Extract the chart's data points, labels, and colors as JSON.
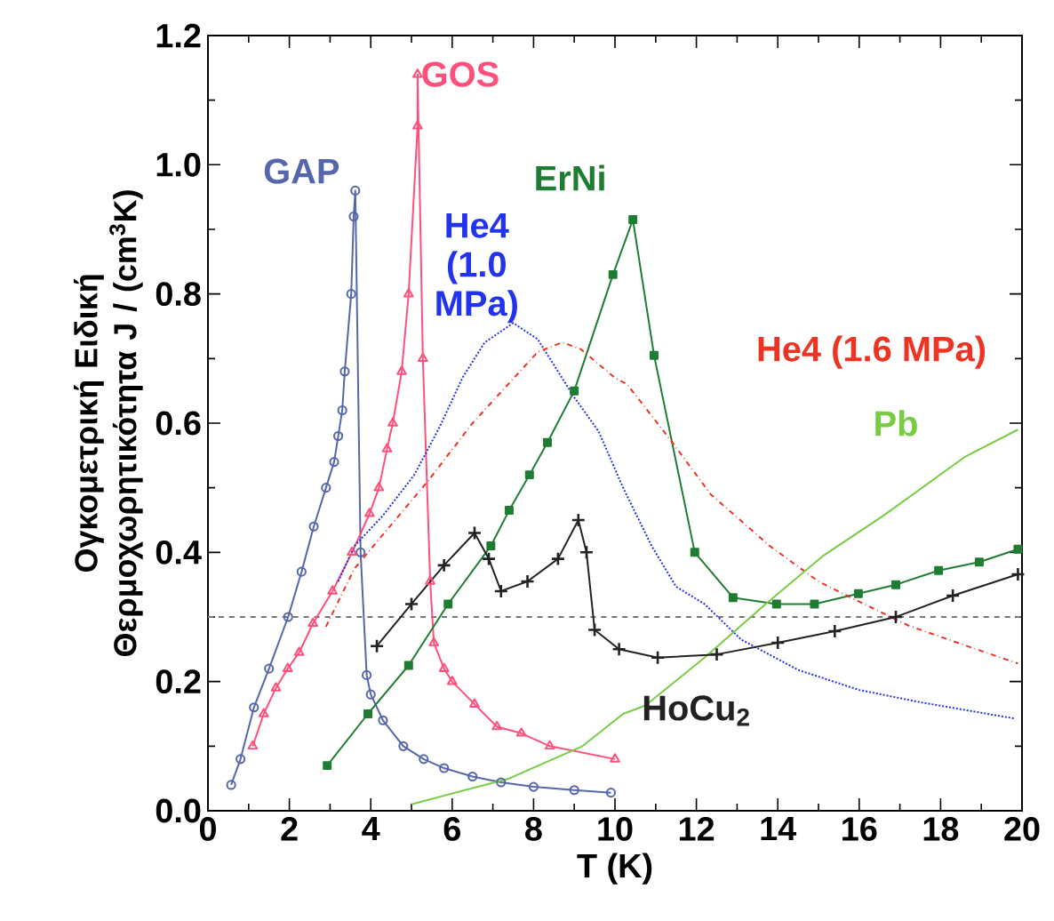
{
  "chart_data": {
    "type": "line",
    "xlabel": "T (K)",
    "ylabel": "Ογκομετρική Ειδική Θερμοχωρητικότητα J / (cm$^{3}$K)",
    "xlim": [
      0,
      20
    ],
    "ylim": [
      0,
      1.2
    ],
    "xticks": [
      0,
      2,
      4,
      6,
      8,
      10,
      12,
      14,
      16,
      18,
      20
    ],
    "yticks": [
      {
        "value": 0,
        "label": "0.0"
      },
      {
        "value": 0.2,
        "label": "0.2"
      },
      {
        "value": 0.4,
        "label": "0.4"
      },
      {
        "value": 0.6,
        "label": "0.6"
      },
      {
        "value": 0.8,
        "label": "0.8"
      },
      {
        "value": 1.0,
        "label": "1.0"
      },
      {
        "value": 1.2,
        "label": "1.2"
      }
    ],
    "grid": false,
    "ref_lines": [
      {
        "axis": "y",
        "value": 0.3,
        "color": "#777777",
        "line_style": "dashed"
      }
    ],
    "series": [
      {
        "name": "GAP",
        "color": "#5566aa",
        "marker": "circle",
        "line_style": "solid",
        "x": [
          0.57,
          0.8,
          1.13,
          1.5,
          1.97,
          2.3,
          2.6,
          2.9,
          3.1,
          3.2,
          3.3,
          3.36,
          3.52,
          3.58,
          3.62,
          3.75,
          3.9,
          4.0,
          4.3,
          4.8,
          5.3,
          5.8,
          6.5,
          7.2,
          8.0,
          9.0,
          9.9
        ],
        "values": [
          0.04,
          0.08,
          0.16,
          0.22,
          0.3,
          0.37,
          0.44,
          0.5,
          0.54,
          0.58,
          0.62,
          0.68,
          0.8,
          0.92,
          0.96,
          0.4,
          0.21,
          0.18,
          0.14,
          0.1,
          0.08,
          0.066,
          0.053,
          0.044,
          0.037,
          0.032,
          0.028
        ]
      },
      {
        "name": "GOS",
        "color": "#ff4f7b",
        "marker": "triangle",
        "line_style": "solid",
        "x": [
          1.1,
          1.37,
          1.67,
          1.96,
          2.24,
          2.58,
          3.06,
          3.54,
          3.97,
          4.2,
          4.4,
          4.54,
          4.76,
          4.93,
          5.15,
          5.15,
          5.28,
          5.46,
          5.55,
          5.8,
          6.0,
          6.55,
          7.1,
          7.7,
          8.4,
          10.0
        ],
        "values": [
          0.1,
          0.15,
          0.19,
          0.22,
          0.245,
          0.29,
          0.34,
          0.4,
          0.46,
          0.5,
          0.56,
          0.6,
          0.68,
          0.8,
          1.06,
          1.14,
          0.7,
          0.355,
          0.26,
          0.22,
          0.2,
          0.165,
          0.13,
          0.12,
          0.1,
          0.08
        ]
      },
      {
        "name": "ErNi",
        "color": "#1e7d32",
        "marker": "square",
        "line_style": "solid",
        "x": [
          2.93,
          3.93,
          4.93,
          5.9,
          6.95,
          7.4,
          7.9,
          8.34,
          9.0,
          9.95,
          10.44,
          10.96,
          11.96,
          12.9,
          13.97,
          14.9,
          15.98,
          16.9,
          17.95,
          18.95,
          19.9
        ],
        "values": [
          0.07,
          0.15,
          0.225,
          0.32,
          0.41,
          0.465,
          0.52,
          0.57,
          0.65,
          0.83,
          0.915,
          0.705,
          0.4,
          0.33,
          0.32,
          0.32,
          0.336,
          0.35,
          0.372,
          0.385,
          0.405
        ]
      },
      {
        "name": "He4 (1.0 MPa)",
        "color": "#2233ee",
        "marker": "none",
        "line_style": "dotted",
        "x": [
          3.2,
          3.6,
          4.3,
          5.07,
          5.7,
          6.25,
          6.8,
          7.5,
          8.1,
          8.7,
          9.0,
          9.6,
          10.2,
          10.9,
          11.5,
          12.2,
          13.1,
          14.5,
          16.0,
          17.5,
          19.8
        ],
        "values": [
          0.355,
          0.41,
          0.457,
          0.52,
          0.595,
          0.67,
          0.725,
          0.755,
          0.73,
          0.67,
          0.64,
          0.587,
          0.5,
          0.41,
          0.347,
          0.32,
          0.265,
          0.218,
          0.187,
          0.168,
          0.143
        ]
      },
      {
        "name": "He4 (1.6 MPa)",
        "color": "#ee3322",
        "marker": "none",
        "line_style": "dashed",
        "x": [
          2.9,
          3.6,
          5.4,
          6.5,
          8.1,
          8.7,
          9.15,
          10.0,
          10.3,
          11.35,
          12.35,
          13.8,
          15.0,
          15.7,
          17.2,
          18.6,
          19.9
        ],
        "values": [
          0.285,
          0.375,
          0.51,
          0.6,
          0.71,
          0.725,
          0.715,
          0.67,
          0.66,
          0.575,
          0.49,
          0.41,
          0.355,
          0.333,
          0.287,
          0.256,
          0.228
        ]
      },
      {
        "name": "Pb",
        "color": "#77cc44",
        "marker": "none",
        "line_style": "solid",
        "x": [
          5.0,
          7.4,
          9.2,
          10.2,
          10.75,
          12.2,
          13.7,
          15.1,
          16.6,
          18.6,
          19.9
        ],
        "values": [
          0.01,
          0.05,
          0.1,
          0.15,
          0.163,
          0.237,
          0.32,
          0.394,
          0.457,
          0.548,
          0.59
        ]
      },
      {
        "name": "HoCu$_{2}$",
        "color": "#222222",
        "marker": "cross",
        "line_style": "solid",
        "x": [
          4.15,
          5.0,
          5.8,
          6.55,
          6.9,
          7.2,
          7.85,
          8.6,
          9.1,
          9.3,
          9.5,
          10.1,
          11.05,
          12.5,
          14.0,
          15.4,
          16.9,
          18.3,
          19.9
        ],
        "values": [
          0.255,
          0.32,
          0.38,
          0.43,
          0.39,
          0.34,
          0.355,
          0.39,
          0.45,
          0.4,
          0.28,
          0.25,
          0.237,
          0.242,
          0.26,
          0.278,
          0.3,
          0.333,
          0.366
        ]
      }
    ]
  }
}
